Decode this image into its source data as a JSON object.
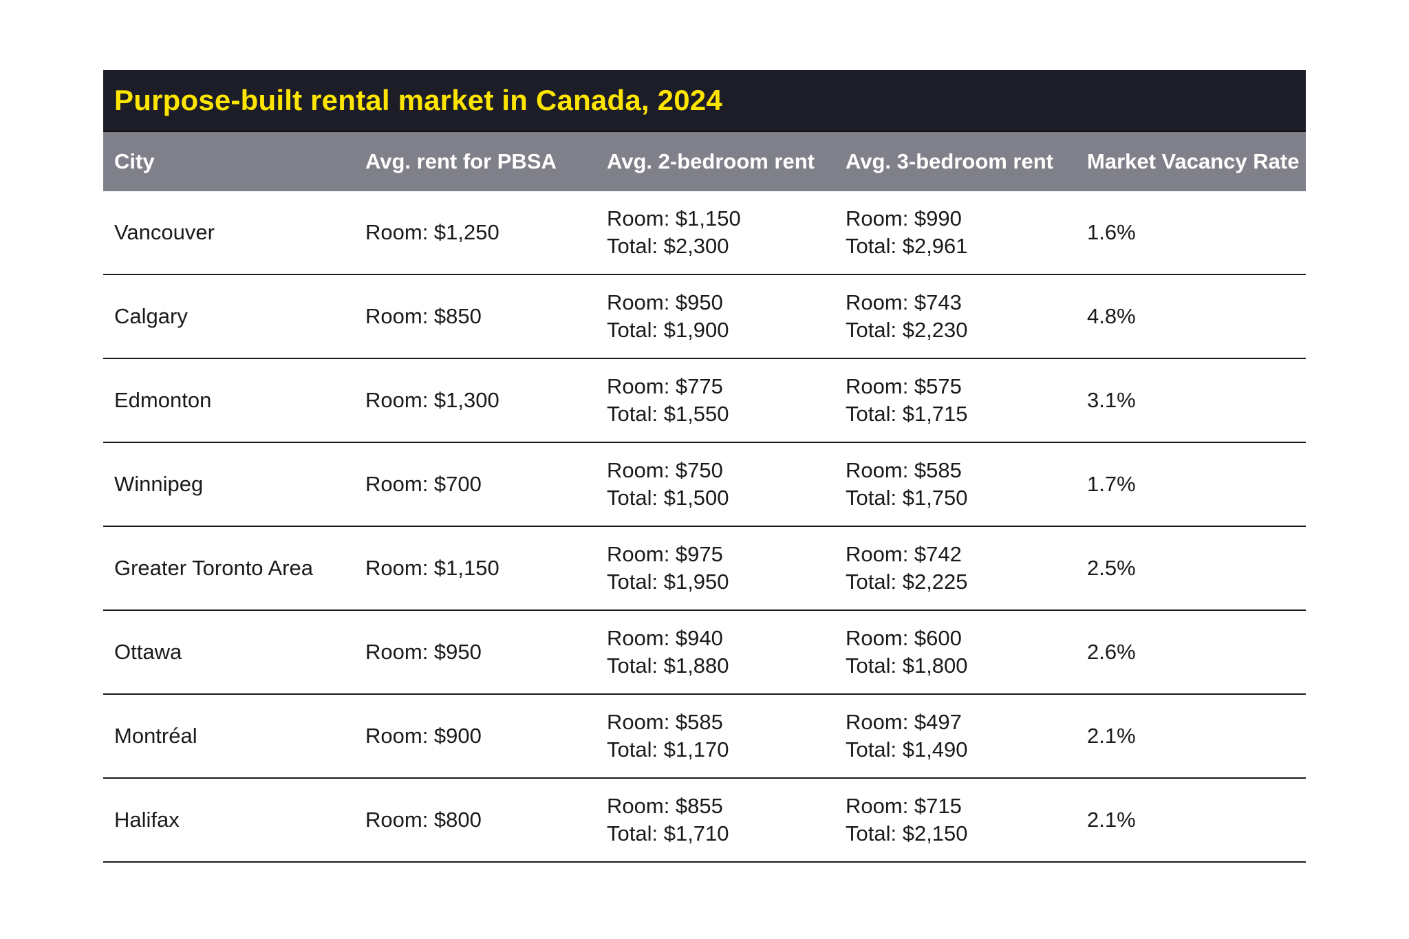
{
  "title_bar": {
    "title": "Purpose-built rental market in Canada, 2024",
    "bg_color": "#1d1d28",
    "text_color": "#ffe600"
  },
  "header": {
    "bg_color": "#7f8089",
    "text_color": "#ffffff",
    "columns": [
      "City",
      "Avg. rent for PBSA",
      "Avg. 2-bedroom rent",
      "Avg. 3-bedroom rent",
      "Market Vacancy Rate"
    ]
  },
  "rows": [
    {
      "city": "Vancouver",
      "pbsa": "Room: $1,250",
      "two_bedroom": {
        "room": "Room: $1,150",
        "total": "Total: $2,300"
      },
      "three_bedroom": {
        "room": "Room: $990",
        "total": "Total: $2,961"
      },
      "vacancy": "1.6%"
    },
    {
      "city": "Calgary",
      "pbsa": "Room: $850",
      "two_bedroom": {
        "room": "Room: $950",
        "total": "Total: $1,900"
      },
      "three_bedroom": {
        "room": "Room: $743",
        "total": "Total: $2,230"
      },
      "vacancy": "4.8%"
    },
    {
      "city": "Edmonton",
      "pbsa": "Room: $1,300",
      "two_bedroom": {
        "room": "Room: $775",
        "total": "Total: $1,550"
      },
      "three_bedroom": {
        "room": "Room: $575",
        "total": "Total: $1,715"
      },
      "vacancy": "3.1%"
    },
    {
      "city": "Winnipeg",
      "pbsa": "Room: $700",
      "two_bedroom": {
        "room": "Room: $750",
        "total": "Total: $1,500"
      },
      "three_bedroom": {
        "room": "Room: $585",
        "total": "Total: $1,750"
      },
      "vacancy": "1.7%"
    },
    {
      "city": "Greater Toronto Area",
      "pbsa": "Room: $1,150",
      "two_bedroom": {
        "room": "Room: $975",
        "total": "Total: $1,950"
      },
      "three_bedroom": {
        "room": "Room: $742",
        "total": "Total: $2,225"
      },
      "vacancy": "2.5%"
    },
    {
      "city": "Ottawa",
      "pbsa": "Room: $950",
      "two_bedroom": {
        "room": "Room: $940",
        "total": "Total: $1,880"
      },
      "three_bedroom": {
        "room": "Room: $600",
        "total": "Total: $1,800"
      },
      "vacancy": "2.6%"
    },
    {
      "city": "Montréal",
      "pbsa": "Room: $900",
      "two_bedroom": {
        "room": "Room: $585",
        "total": "Total: $1,170"
      },
      "three_bedroom": {
        "room": "Room: $497",
        "total": "Total: $1,490"
      },
      "vacancy": "2.1%"
    },
    {
      "city": "Halifax",
      "pbsa": "Room: $800",
      "two_bedroom": {
        "room": "Room: $855",
        "total": "Total: $1,710"
      },
      "three_bedroom": {
        "room": "Room: $715",
        "total": "Total: $2,150"
      },
      "vacancy": "2.1%"
    }
  ],
  "chart_data": {
    "type": "table",
    "title": "Purpose-built rental market in Canada, 2024",
    "columns": [
      "City",
      "Avg. rent for PBSA",
      "Avg. 2-bedroom rent",
      "Avg. 3-bedroom rent",
      "Market Vacancy Rate"
    ],
    "rows": [
      {
        "city": "Vancouver",
        "pbsa_room": 1250,
        "two_bed_room": 1150,
        "two_bed_total": 2300,
        "three_bed_room": 990,
        "three_bed_total": 2961,
        "vacancy_rate_pct": 1.6
      },
      {
        "city": "Calgary",
        "pbsa_room": 850,
        "two_bed_room": 950,
        "two_bed_total": 1900,
        "three_bed_room": 743,
        "three_bed_total": 2230,
        "vacancy_rate_pct": 4.8
      },
      {
        "city": "Edmonton",
        "pbsa_room": 1300,
        "two_bed_room": 775,
        "two_bed_total": 1550,
        "three_bed_room": 575,
        "three_bed_total": 1715,
        "vacancy_rate_pct": 3.1
      },
      {
        "city": "Winnipeg",
        "pbsa_room": 700,
        "two_bed_room": 750,
        "two_bed_total": 1500,
        "three_bed_room": 585,
        "three_bed_total": 1750,
        "vacancy_rate_pct": 1.7
      },
      {
        "city": "Greater Toronto Area",
        "pbsa_room": 1150,
        "two_bed_room": 975,
        "two_bed_total": 1950,
        "three_bed_room": 742,
        "three_bed_total": 2225,
        "vacancy_rate_pct": 2.5
      },
      {
        "city": "Ottawa",
        "pbsa_room": 950,
        "two_bed_room": 940,
        "two_bed_total": 1880,
        "three_bed_room": 600,
        "three_bed_total": 1800,
        "vacancy_rate_pct": 2.6
      },
      {
        "city": "Montréal",
        "pbsa_room": 900,
        "two_bed_room": 585,
        "two_bed_total": 1170,
        "three_bed_room": 497,
        "three_bed_total": 1490,
        "vacancy_rate_pct": 2.1
      },
      {
        "city": "Halifax",
        "pbsa_room": 800,
        "two_bed_room": 855,
        "two_bed_total": 1710,
        "three_bed_room": 715,
        "three_bed_total": 2150,
        "vacancy_rate_pct": 2.1
      }
    ],
    "units": "CAD per month",
    "currency_symbol": "$"
  }
}
